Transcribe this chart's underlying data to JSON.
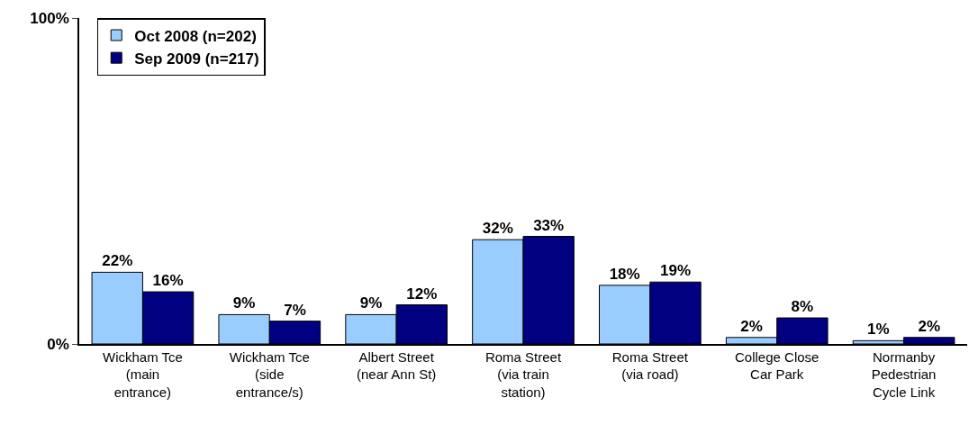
{
  "chart_data": {
    "type": "bar",
    "categories": [
      "Wickham Tce (main entrance)",
      "Wickham Tce (side entrance/s)",
      "Albert Street (near Ann St)",
      "Roma Street (via train station)",
      "Roma Street (via road)",
      "College Close Car Park",
      "Normanby Pedestrian Cycle Link"
    ],
    "series": [
      {
        "name": "Oct 2008 (n=202)",
        "color": "#99ccff",
        "values": [
          22,
          9,
          9,
          32,
          18,
          2,
          1
        ],
        "value_labels": [
          "22%",
          "9%",
          "9%",
          "32%",
          "18%",
          "2%",
          "1%"
        ]
      },
      {
        "name": "Sep 2009 (n=217)",
        "color": "#000080",
        "values": [
          16,
          7,
          12,
          33,
          19,
          8,
          2
        ],
        "value_labels": [
          "16%",
          "7%",
          "12%",
          "33%",
          "19%",
          "8%",
          "2%"
        ]
      }
    ],
    "ylim": [
      0,
      100
    ],
    "yticks": [
      {
        "value": 0,
        "label": "0%"
      },
      {
        "value": 100,
        "label": "100%"
      }
    ],
    "legend": "top left"
  }
}
